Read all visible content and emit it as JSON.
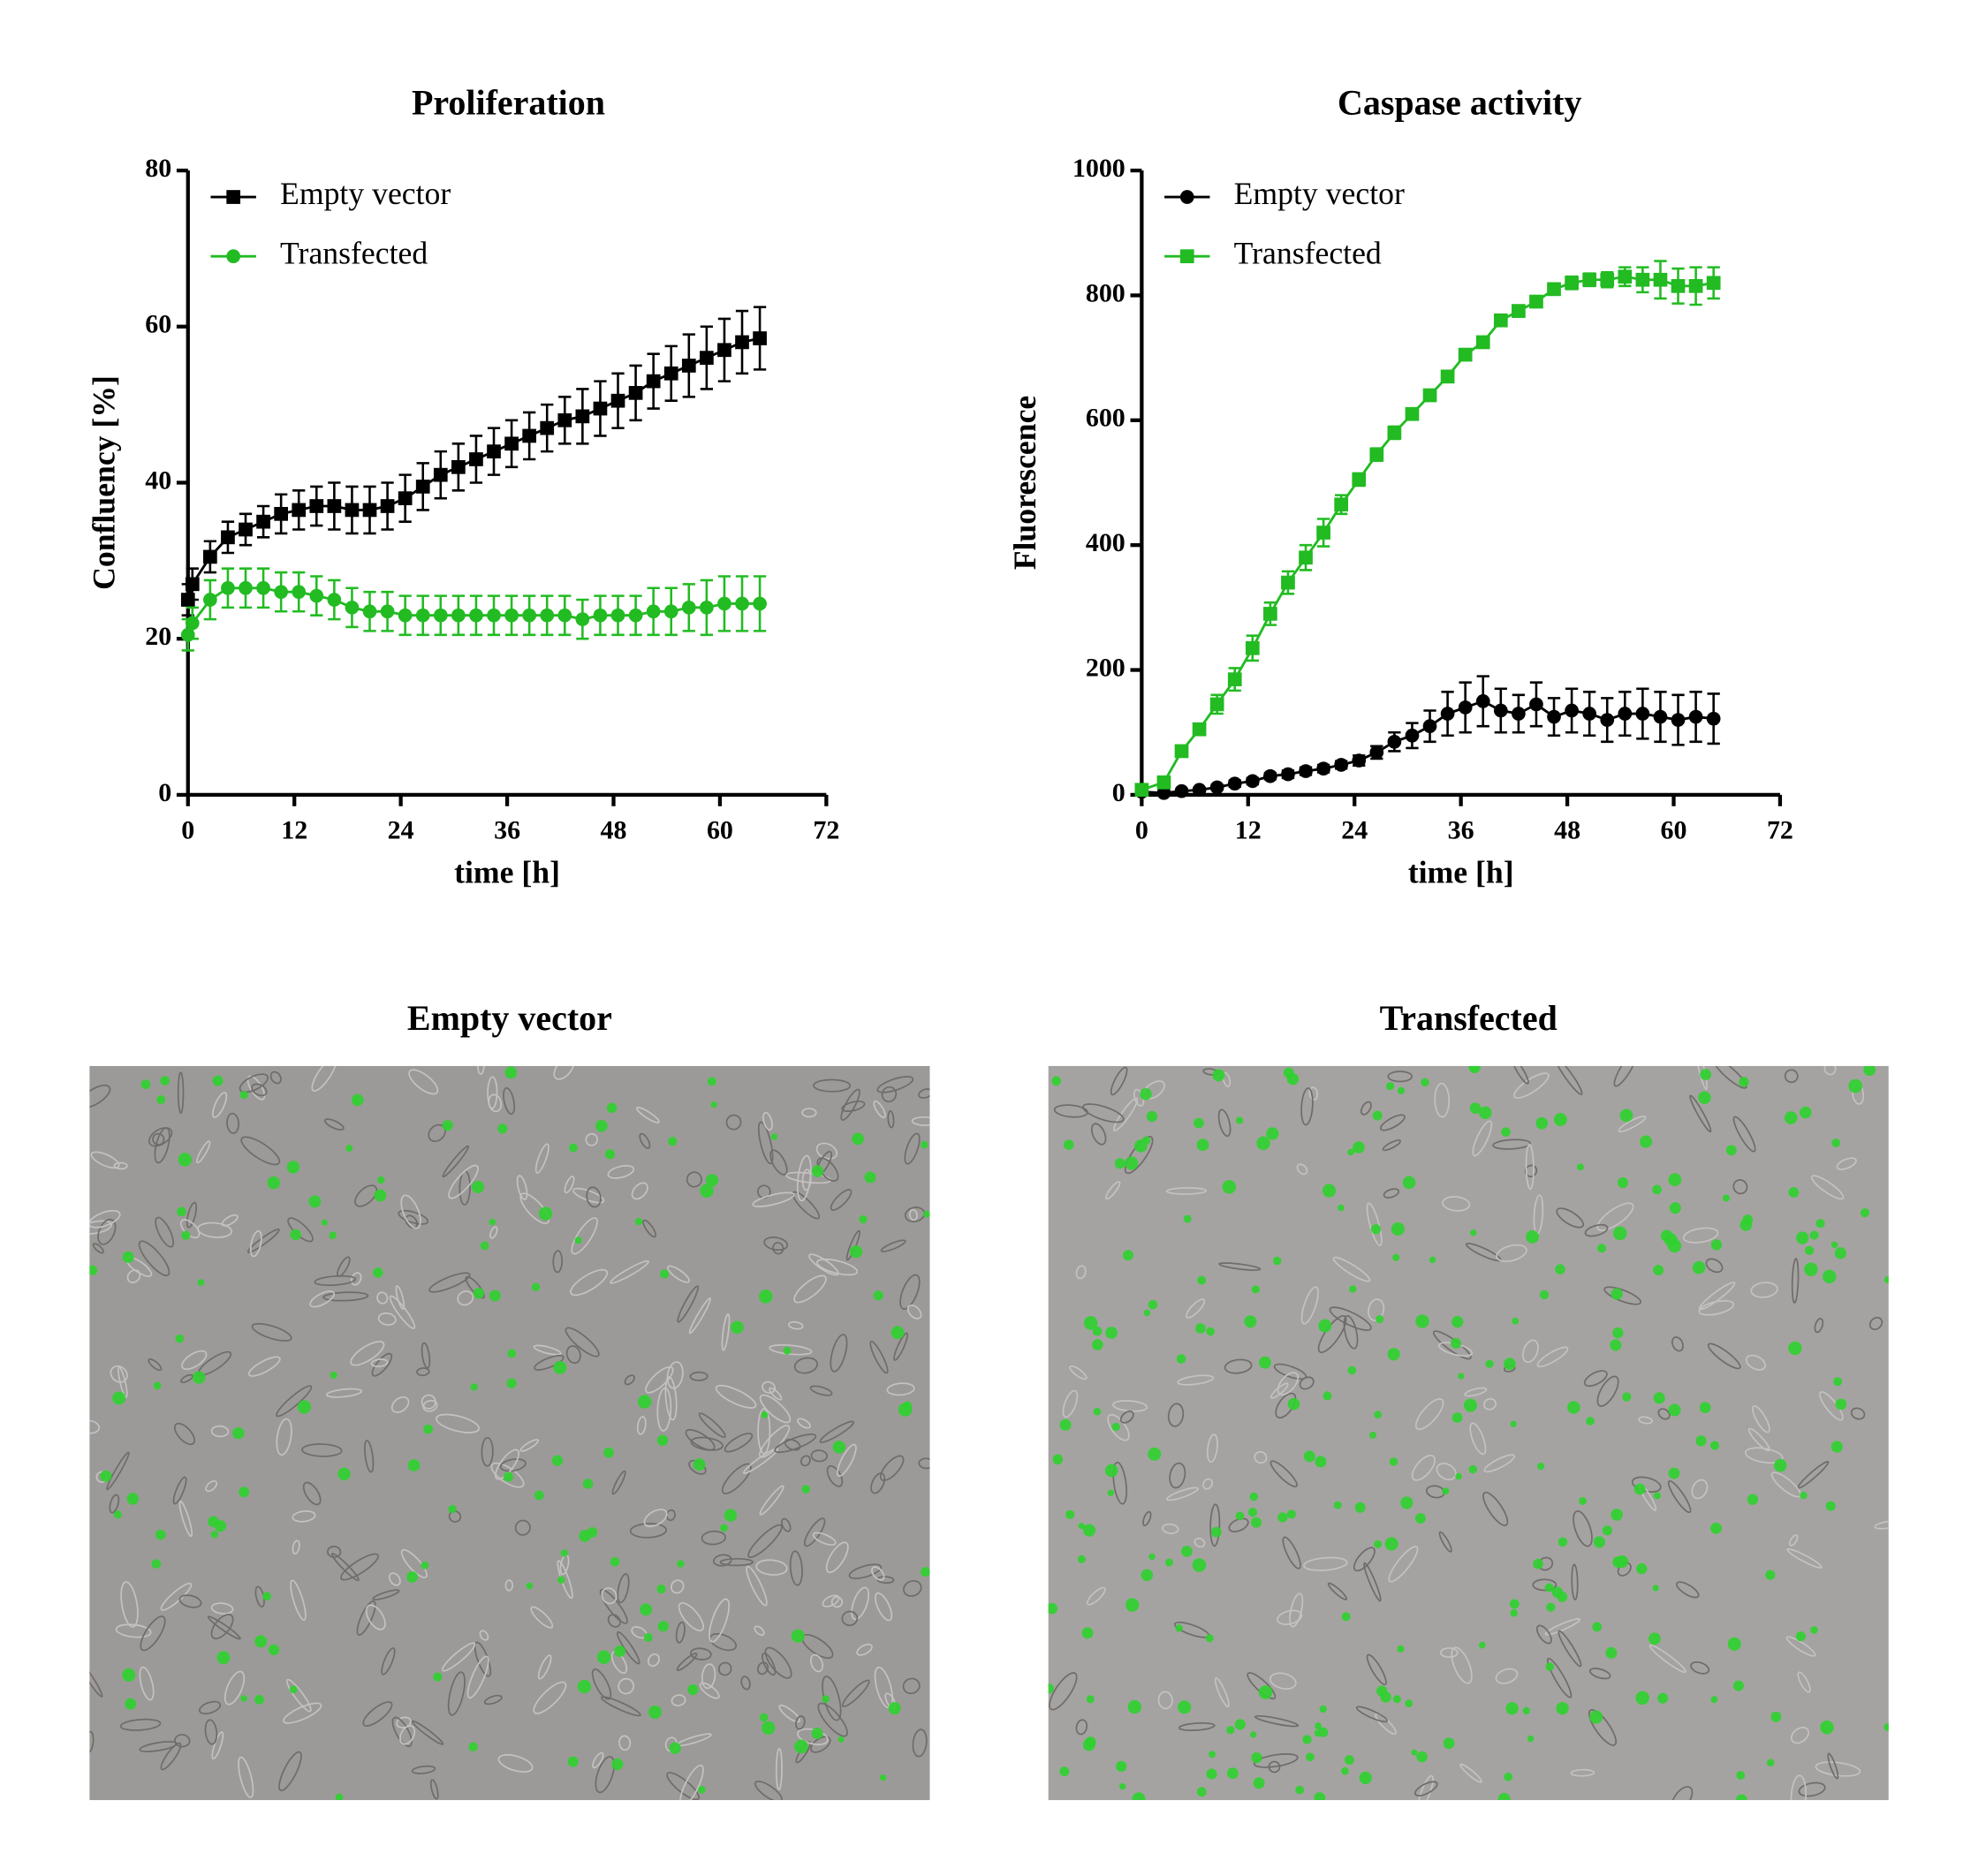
{
  "chart_data": [
    {
      "type": "line",
      "title": "Proliferation",
      "x_label": "time [h]",
      "y_label": "Confluency [%]",
      "xlim": [
        0,
        72
      ],
      "xticks": [
        0,
        12,
        24,
        36,
        48,
        60,
        72
      ],
      "ylim": [
        0,
        80
      ],
      "yticks": [
        0,
        20,
        40,
        60,
        80
      ],
      "x": [
        0,
        0.5,
        2.5,
        4.5,
        6.5,
        8.5,
        10.5,
        12.5,
        14.5,
        16.5,
        18.5,
        20.5,
        22.5,
        24.5,
        26.5,
        28.5,
        30.5,
        32.5,
        34.5,
        36.5,
        38.5,
        40.5,
        42.5,
        44.5,
        46.5,
        48.5,
        50.5,
        52.5,
        54.5,
        56.5,
        58.5,
        60.5,
        62.5,
        64.5
      ],
      "series": [
        {
          "name": "Empty vector",
          "color": "#000000",
          "marker": "square",
          "values": [
            25,
            27,
            30.5,
            33,
            34,
            35,
            36,
            36.5,
            37,
            37,
            36.5,
            36.5,
            37,
            38,
            39.5,
            41,
            42,
            43,
            44,
            45,
            46,
            47,
            48,
            48.5,
            49.5,
            50.5,
            51.5,
            53,
            54,
            55,
            56,
            57,
            58,
            58.5
          ],
          "errors": [
            2,
            2,
            2,
            2,
            2,
            2,
            2.5,
            2.5,
            2.5,
            3,
            3,
            3,
            3,
            3,
            3,
            3,
            3,
            3,
            3,
            3,
            3,
            3,
            3,
            3.5,
            3.5,
            3.5,
            3.5,
            3.5,
            3.5,
            4,
            4,
            4,
            4,
            4
          ]
        },
        {
          "name": "Transfected",
          "color": "#22bb22",
          "marker": "circle",
          "values": [
            20.5,
            22,
            25,
            26.5,
            26.5,
            26.5,
            26,
            26,
            25.5,
            25,
            24,
            23.5,
            23.5,
            23,
            23,
            23,
            23,
            23,
            23,
            23,
            23,
            23,
            23,
            22.5,
            23,
            23,
            23,
            23.5,
            23.5,
            24,
            24,
            24.5,
            24.5,
            24.5
          ],
          "errors": [
            2,
            2,
            2.5,
            2.5,
            2.5,
            2.5,
            2.5,
            2.5,
            2.5,
            2.5,
            2.5,
            2.5,
            2.5,
            2.5,
            2.5,
            2.5,
            2.5,
            2.5,
            2.5,
            2.5,
            2.5,
            2.5,
            2.5,
            2.5,
            2.5,
            2.5,
            2.5,
            3,
            3,
            3,
            3.5,
            3.5,
            3.5,
            3.5
          ]
        }
      ]
    },
    {
      "type": "line",
      "title": "Caspase activity",
      "x_label": "time [h]",
      "y_label": "Fluorescence",
      "xlim": [
        0,
        72
      ],
      "xticks": [
        0,
        12,
        24,
        36,
        48,
        60,
        72
      ],
      "ylim": [
        0,
        1000
      ],
      "yticks": [
        0,
        200,
        400,
        600,
        800,
        1000
      ],
      "x": [
        0,
        2.5,
        4.5,
        6.5,
        8.5,
        10.5,
        12.5,
        14.5,
        16.5,
        18.5,
        20.5,
        22.5,
        24.5,
        26.5,
        28.5,
        30.5,
        32.5,
        34.5,
        36.5,
        38.5,
        40.5,
        42.5,
        44.5,
        46.5,
        48.5,
        50.5,
        52.5,
        54.5,
        56.5,
        58.5,
        60.5,
        62.5,
        64.5
      ],
      "series": [
        {
          "name": "Empty vector",
          "color": "#000000",
          "marker": "circle",
          "values": [
            5,
            3,
            6,
            8,
            12,
            18,
            22,
            30,
            33,
            38,
            42,
            48,
            55,
            68,
            85,
            95,
            110,
            130,
            140,
            150,
            135,
            130,
            145,
            125,
            135,
            130,
            120,
            130,
            130,
            125,
            120,
            125,
            122
          ],
          "errors": [
            3,
            3,
            3,
            3,
            4,
            5,
            5,
            5,
            6,
            6,
            6,
            6,
            8,
            10,
            15,
            20,
            25,
            35,
            40,
            40,
            35,
            30,
            35,
            30,
            35,
            35,
            35,
            35,
            40,
            40,
            40,
            40,
            40
          ]
        },
        {
          "name": "Transfected",
          "color": "#22bb22",
          "marker": "square",
          "values": [
            8,
            20,
            70,
            105,
            145,
            185,
            235,
            290,
            340,
            380,
            420,
            465,
            505,
            545,
            580,
            610,
            640,
            670,
            705,
            725,
            760,
            775,
            790,
            810,
            820,
            825,
            825,
            830,
            825,
            825,
            815,
            815,
            820
          ],
          "errors": [
            5,
            5,
            6,
            8,
            15,
            18,
            20,
            18,
            18,
            20,
            22,
            15,
            10,
            10,
            10,
            8,
            8,
            8,
            8,
            8,
            8,
            8,
            8,
            8,
            10,
            10,
            12,
            15,
            20,
            30,
            28,
            30,
            25
          ]
        }
      ]
    }
  ],
  "images": [
    {
      "title": "Empty vector"
    },
    {
      "title": "Transfected"
    }
  ]
}
